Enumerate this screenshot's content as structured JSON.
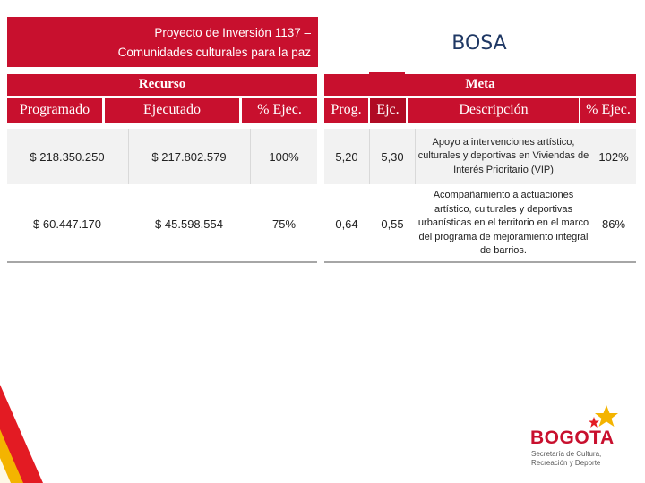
{
  "header": {
    "title_line1": "Proyecto de Inversión 1137 –",
    "title_line2": "Comunidades culturales para la paz",
    "locality": "BOSA"
  },
  "table": {
    "group_recurso": "Recurso",
    "group_meta": "Meta",
    "col_programado": "Programado",
    "col_ejecutado": "Ejecutado",
    "col_ejec_recurso": "% Ejec.",
    "col_prog": "Prog.",
    "col_ejc": "Ejc.",
    "col_descripcion": "Descripción",
    "col_ejec_meta": "% Ejec.",
    "rows": [
      {
        "programado": "$ 218.350.250",
        "ejecutado": "$ 217.802.579",
        "ejec_recurso": "100%",
        "prog": "5,20",
        "ejc": "5,30",
        "descripcion": "Apoyo a intervenciones artístico, culturales y deportivas en Viviendas de Interés Prioritario (VIP)",
        "ejec_meta": "102%"
      },
      {
        "programado": "$ 60.447.170",
        "ejecutado": "$ 45.598.554",
        "ejec_recurso": "75%",
        "prog": "0,64",
        "ejc": "0,55",
        "descripcion": "Acompañamiento a actuaciones artístico, culturales y deportivas urbanísticas en el territorio en el marco del programa de mejoramiento integral de barrios.",
        "ejec_meta": "86%"
      }
    ]
  },
  "logo": {
    "word": "BOGOTA",
    "sub_line1": "Secretaría de Cultura,",
    "sub_line2": "Recreación y Deporte"
  },
  "colors": {
    "accent_red": "#c8102e",
    "title_blue": "#1f3864",
    "star_yellow": "#f4b400"
  }
}
